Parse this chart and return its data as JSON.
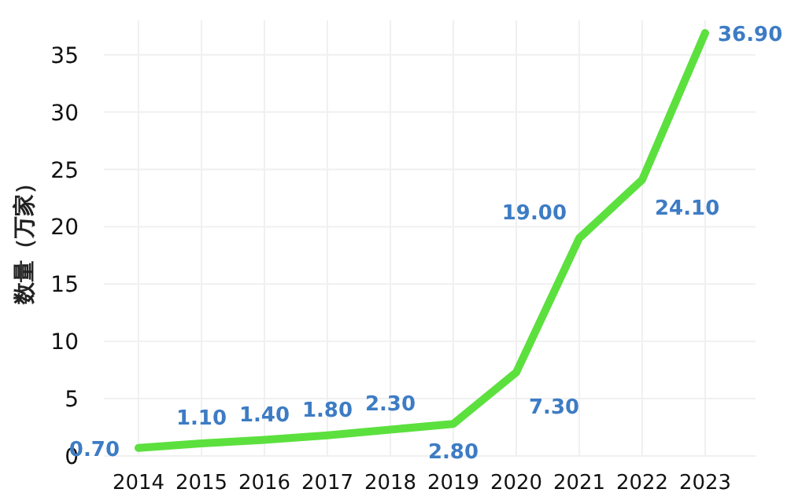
{
  "chart_data": {
    "type": "line",
    "ylabel": "数量（万家）",
    "categories": [
      "2014",
      "2015",
      "2016",
      "2017",
      "2018",
      "2019",
      "2020",
      "2021",
      "2022",
      "2023"
    ],
    "series": [
      {
        "color": "#5ce03e",
        "values": [
          0.7,
          1.1,
          1.4,
          1.8,
          2.3,
          2.8,
          7.3,
          19.0,
          24.1,
          36.9
        ],
        "value_labels": [
          "0.70",
          "1.10",
          "1.40",
          "1.80",
          "2.30",
          "2.80",
          "7.30",
          "19.00",
          "24.10",
          "36.90"
        ]
      }
    ],
    "ylim": [
      0,
      38
    ],
    "yticks": [
      0,
      5,
      10,
      15,
      20,
      25,
      30,
      35
    ],
    "grid": true,
    "marker": "none",
    "line_style": "solid"
  }
}
